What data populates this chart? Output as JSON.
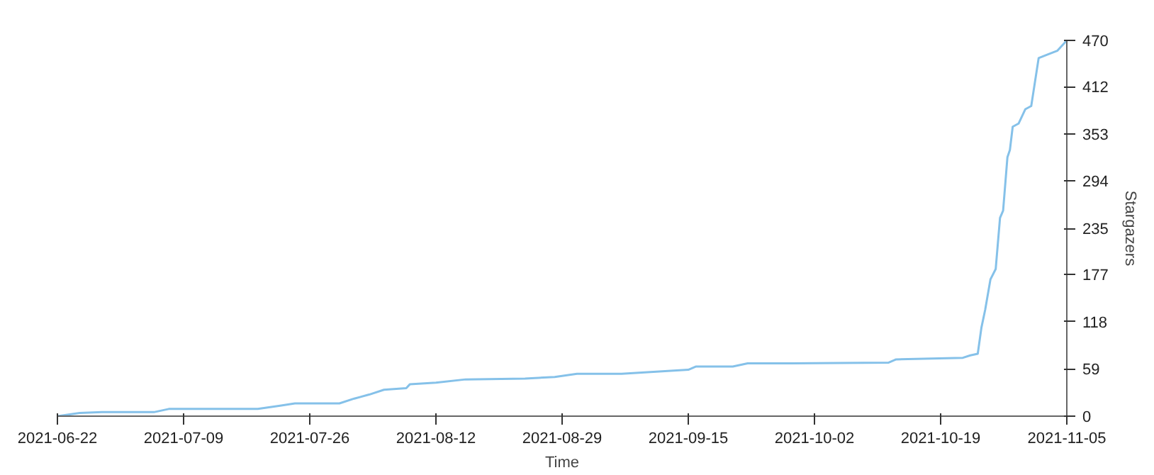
{
  "chart_data": {
    "type": "line",
    "xlabel": "Time",
    "ylabel": "Stargazers",
    "marker": "none",
    "line_style": "solid",
    "xlim": [
      "2021-06-22",
      "2021-11-05"
    ],
    "xticks": [
      "2021-06-22",
      "2021-07-09",
      "2021-07-26",
      "2021-08-12",
      "2021-08-29",
      "2021-09-15",
      "2021-10-02",
      "2021-10-19",
      "2021-11-05"
    ],
    "ylim": [
      0,
      470
    ],
    "yticks": [
      0,
      59,
      118,
      177,
      235,
      294,
      353,
      412,
      470
    ],
    "x": [
      "2021-06-22",
      "2021-06-25",
      "2021-06-28",
      "2021-07-05",
      "2021-07-07",
      "2021-07-19",
      "2021-07-22",
      "2021-07-24",
      "2021-07-30",
      "2021-08-01",
      "2021-08-03",
      "2021-08-05",
      "2021-08-08",
      "2021-08-08T12:00",
      "2021-08-12",
      "2021-08-16",
      "2021-08-24",
      "2021-08-28",
      "2021-08-31",
      "2021-09-06",
      "2021-09-15",
      "2021-09-16",
      "2021-09-21",
      "2021-09-23",
      "2021-09-29",
      "2021-10-12",
      "2021-10-13",
      "2021-10-22",
      "2021-10-23",
      "2021-10-24",
      "2021-10-24T12:00",
      "2021-10-25",
      "2021-10-25T17:00",
      "2021-10-26T10:00",
      "2021-10-27",
      "2021-10-27T10:00",
      "2021-10-28",
      "2021-10-28T08:00",
      "2021-10-28T17:00",
      "2021-10-29T12:00",
      "2021-10-30T10:00",
      "2021-10-31T05:00",
      "2021-11-01T05:00",
      "2021-11-02T07:00",
      "2021-11-03T17:00",
      "2021-11-05"
    ],
    "series": [
      {
        "color": "#85c1e9",
        "values": [
          0,
          4,
          5,
          5,
          9,
          9,
          13,
          16,
          16,
          22,
          27,
          33,
          35,
          40,
          42,
          46,
          47,
          49,
          53,
          53,
          58,
          62,
          62,
          66,
          66,
          67,
          71,
          73,
          76,
          78,
          111,
          133,
          171,
          184,
          248,
          257,
          324,
          333,
          362,
          366,
          384,
          388,
          448,
          452,
          457,
          470
        ]
      }
    ]
  }
}
